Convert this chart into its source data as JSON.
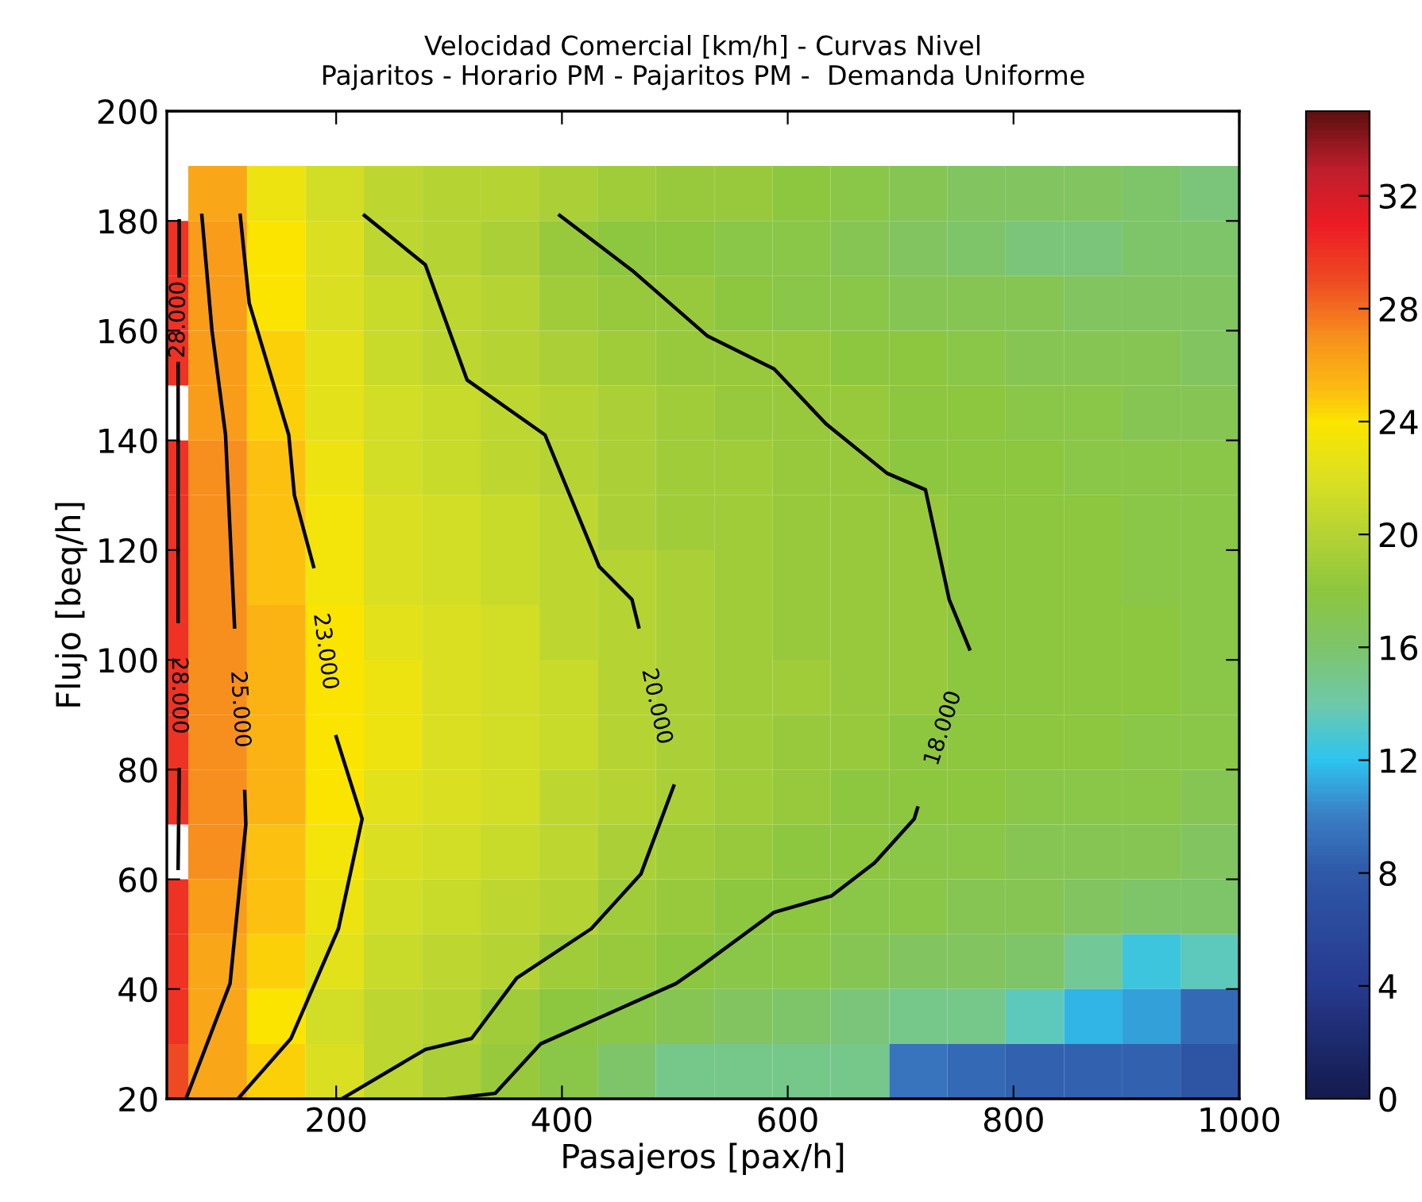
{
  "chart_data": {
    "type": "heatmap",
    "title": "Velocidad Comercial [km/h] - Curvas Nivel\nPajaritos - Horario PM - Pajaritos PM -  Demanda Uniforme",
    "xlabel": "Pasajeros [pax/h]",
    "ylabel": "Flujo [beq/h]",
    "x": [
      59.5,
      95,
      147,
      199,
      250,
      302,
      354,
      406,
      457,
      509,
      561,
      612,
      664,
      716,
      767,
      819,
      871,
      922,
      974
    ],
    "y": [
      185,
      175,
      165,
      155,
      145,
      135,
      125,
      115,
      105,
      95,
      85,
      75,
      65,
      55,
      45,
      35,
      25
    ],
    "cells": [
      [
        null,
        26,
        23,
        21.5,
        20.5,
        20,
        20,
        19.5,
        19,
        18.5,
        18.5,
        18,
        17.5,
        17,
        16.5,
        16.5,
        16.5,
        16,
        15.5
      ],
      [
        30,
        26.5,
        24,
        22,
        20.5,
        20,
        19.5,
        18.5,
        18,
        18,
        17.5,
        17.5,
        17,
        16.5,
        16,
        15.5,
        15.5,
        16,
        16
      ],
      [
        30,
        26.5,
        24,
        22,
        21,
        20.5,
        20,
        19,
        18.5,
        18.5,
        18,
        17.5,
        17.5,
        17,
        17,
        17,
        16.5,
        16.5,
        16.5
      ],
      [
        30,
        26.5,
        24.5,
        22.5,
        21,
        20.5,
        20,
        19.5,
        19,
        18.5,
        18.5,
        18.5,
        18,
        18,
        17.5,
        17,
        17,
        17,
        16.5
      ],
      [
        null,
        26.5,
        24.5,
        22.5,
        21.5,
        21,
        20.5,
        20,
        19.5,
        19,
        18.5,
        18.5,
        18.5,
        18,
        18,
        17.5,
        17.5,
        17,
        17
      ],
      [
        30,
        27,
        25,
        23,
        21.5,
        21,
        20.5,
        20,
        19.5,
        19,
        19,
        18.5,
        18.5,
        18,
        18,
        18,
        17.5,
        17.5,
        17.5
      ],
      [
        30,
        27,
        25,
        23.5,
        22,
        21.5,
        21,
        20.5,
        19.5,
        19,
        19,
        18.5,
        18.5,
        18.5,
        18,
        18,
        18,
        17.5,
        17.5
      ],
      [
        30,
        27,
        25,
        23.5,
        22,
        21.5,
        21,
        20.5,
        20,
        19.5,
        19,
        18.5,
        18.5,
        18.5,
        18,
        18,
        18,
        17.5,
        17.5
      ],
      [
        30,
        27,
        25.5,
        24,
        22.5,
        22,
        21.5,
        20.5,
        20,
        19.5,
        19,
        18.5,
        18.5,
        18.5,
        18,
        18,
        18,
        18,
        17.5
      ],
      [
        30,
        27,
        25.5,
        24,
        23,
        22,
        21.5,
        21,
        20,
        19.5,
        19,
        19,
        18.5,
        18.5,
        18,
        18,
        18,
        18,
        17.5
      ],
      [
        30,
        27,
        25.5,
        24,
        23,
        22,
        21.5,
        21,
        20,
        19.5,
        19,
        18.5,
        18.5,
        18,
        18,
        18,
        18,
        17.5,
        17.5
      ],
      [
        30,
        27,
        25.5,
        24,
        22.5,
        22,
        21.5,
        20.5,
        20,
        19.5,
        19,
        18.5,
        18,
        18,
        18,
        17.5,
        17.5,
        17.5,
        17
      ],
      [
        null,
        27,
        25,
        23.5,
        22,
        21.5,
        21,
        20.5,
        19.5,
        19,
        18.5,
        18,
        18,
        17.5,
        17.5,
        17,
        17,
        17,
        16.5
      ],
      [
        30,
        26.5,
        25,
        23,
        21.5,
        21,
        20.5,
        20,
        19,
        18.5,
        18,
        18,
        17.5,
        17.5,
        17,
        17,
        16.5,
        16,
        16
      ],
      [
        30,
        26,
        24.5,
        22.5,
        21,
        20.5,
        20,
        19,
        18.5,
        18,
        17.5,
        17.5,
        17,
        16.5,
        16.5,
        16,
        14.5,
        12.5,
        13.5
      ],
      [
        30,
        26,
        24,
        21.5,
        20.5,
        20,
        19,
        18,
        17.5,
        17,
        16.5,
        16,
        15.5,
        15,
        15,
        13.5,
        11.5,
        11,
        9
      ],
      [
        29,
        26,
        24.5,
        22,
        20.5,
        19.5,
        18.5,
        17.5,
        16,
        15,
        15,
        15,
        15,
        9.5,
        9,
        8.5,
        8.5,
        8.5,
        7.5
      ]
    ],
    "clim": [
      0,
      35
    ],
    "cticks": [
      0,
      4,
      8,
      12,
      16,
      20,
      24,
      28,
      32
    ],
    "series": [
      {
        "type": "line",
        "name": "28.000",
        "color": "#000000",
        "x": [
          61,
          61,
          null,
          60,
          60,
          60,
          null,
          61,
          60
        ],
        "values": [
          180,
          170,
          null,
          154,
          121,
          107,
          null,
          80,
          62
        ]
      },
      {
        "type": "line",
        "name": "25.000",
        "color": "#000000",
        "x": [
          81,
          90,
          102,
          110,
          null,
          119,
          120,
          106,
          67
        ],
        "values": [
          181,
          160,
          141,
          106,
          null,
          76,
          70,
          41,
          20
        ]
      },
      {
        "type": "line",
        "name": "23.000",
        "color": "#000000",
        "x": [
          115,
          123,
          158,
          163,
          180,
          null,
          200,
          223,
          202,
          160,
          113
        ],
        "values": [
          181,
          165,
          141,
          130,
          117,
          null,
          86,
          71,
          51,
          31,
          20
        ]
      },
      {
        "type": "line",
        "name": "20.000",
        "color": "#000000",
        "x": [
          225,
          279,
          316,
          385,
          433,
          462,
          468,
          null,
          499,
          470,
          426,
          360,
          320,
          279,
          205
        ],
        "values": [
          181,
          172,
          151,
          141,
          117,
          111,
          106,
          null,
          77,
          61,
          51,
          42,
          31,
          29,
          20
        ]
      },
      {
        "type": "line",
        "name": "18.000",
        "color": "#000000",
        "x": [
          398,
          462,
          529,
          588,
          634,
          688,
          722,
          743,
          757,
          761,
          null,
          715,
          712,
          677,
          639,
          588,
          522,
          501,
          381,
          341,
          299
        ],
        "values": [
          181,
          171,
          159,
          153,
          143,
          134,
          131,
          111,
          104,
          102,
          null,
          73,
          71,
          63,
          57,
          54,
          44,
          41,
          30,
          21,
          20
        ]
      }
    ],
    "xlim": [
      50,
      1000
    ],
    "ylim": [
      20,
      200
    ],
    "xticks": [
      200,
      400,
      600,
      800,
      1000
    ],
    "yticks": [
      20,
      40,
      60,
      80,
      100,
      120,
      140,
      160,
      180,
      200
    ],
    "grid": false
  }
}
